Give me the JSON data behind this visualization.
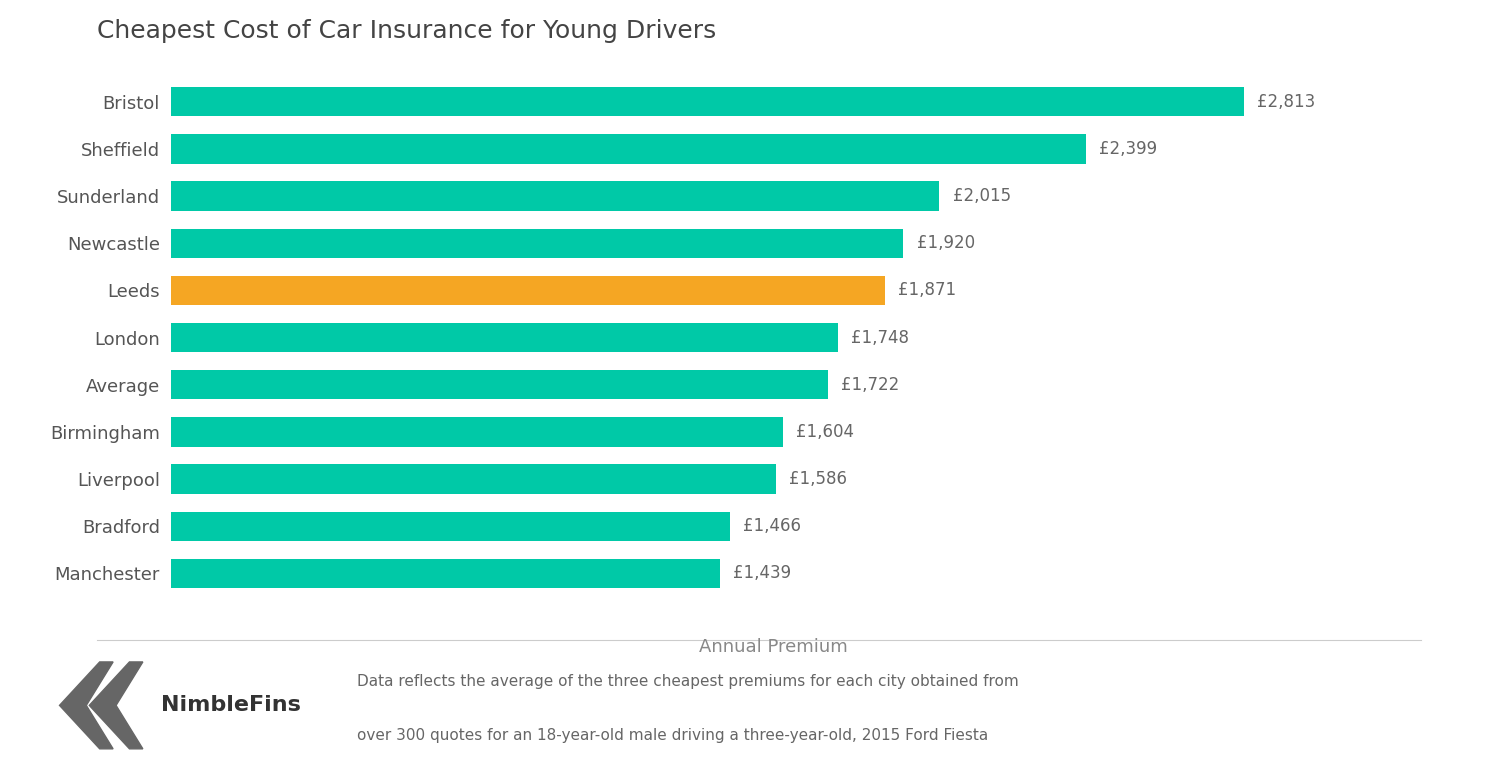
{
  "title": "Cheapest Cost of Car Insurance for Young Drivers",
  "categories": [
    "Manchester",
    "Bradford",
    "Liverpool",
    "Birmingham",
    "Average",
    "London",
    "Leeds",
    "Newcastle",
    "Sunderland",
    "Sheffield",
    "Bristol"
  ],
  "values": [
    2813,
    2399,
    2015,
    1920,
    1871,
    1748,
    1722,
    1604,
    1586,
    1466,
    1439
  ],
  "labels": [
    "£2,813",
    "£2,399",
    "£2,015",
    "£1,920",
    "£1,871",
    "£1,748",
    "£1,722",
    "£1,604",
    "£1,586",
    "£1,466",
    "£1,439"
  ],
  "bar_colors": [
    "#00C9A7",
    "#00C9A7",
    "#00C9A7",
    "#00C9A7",
    "#F5A623",
    "#00C9A7",
    "#00C9A7",
    "#00C9A7",
    "#00C9A7",
    "#00C9A7",
    "#00C9A7"
  ],
  "xlabel": "Annual Premium",
  "xlim": [
    0,
    3200
  ],
  "background_color": "#ffffff",
  "title_fontsize": 18,
  "label_fontsize": 12,
  "tick_fontsize": 13,
  "xlabel_fontsize": 13,
  "bar_height": 0.62,
  "footnote_line1": "Data reflects the average of the three cheapest premiums for each city obtained from",
  "footnote_line2": "over 300 quotes for an 18-year-old male driving a three-year-old, 2015 Ford Fiesta",
  "chevron_color": "#666666",
  "nimblefins_color": "#333333"
}
